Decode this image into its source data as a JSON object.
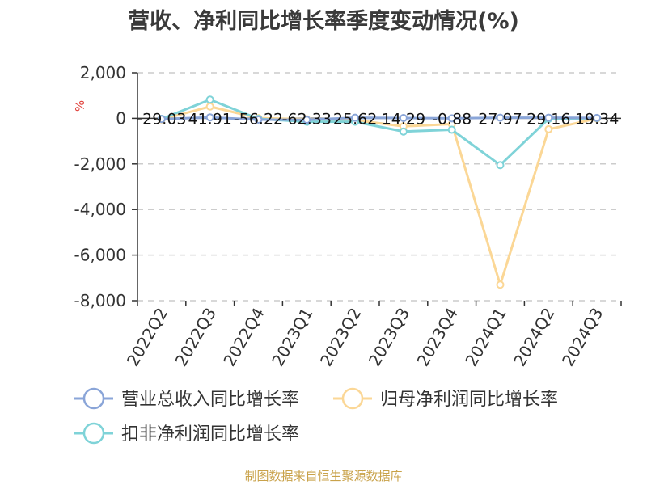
{
  "chart_data": {
    "type": "line",
    "title": "营收、净利同比增长率季度变动情况(%)",
    "ylabel": "%",
    "categories": [
      "2022Q2",
      "2022Q3",
      "2022Q4",
      "2023Q1",
      "2023Q2",
      "2023Q3",
      "2023Q4",
      "2024Q1",
      "2024Q2",
      "2024Q3"
    ],
    "yticks": [
      2000,
      0,
      -2000,
      -4000,
      -6000,
      -8000
    ],
    "ytick_labels": [
      "2,000",
      "0",
      "-2,000",
      "-4,000",
      "-6,000",
      "-8,000"
    ],
    "ylim": [
      -8000,
      2000
    ],
    "grid": true,
    "series": [
      {
        "name": "营业总收入同比增长率",
        "color": "#8aa5d8",
        "values": [
          -29.03,
          41.91,
          -56.22,
          -62.33,
          25.62,
          14.29,
          -0.88,
          27.97,
          29.16,
          19.34
        ]
      },
      {
        "name": "归母净利润同比增长率",
        "color": "#fbd796",
        "values": [
          -50,
          520,
          10,
          -40,
          -80,
          -350,
          -250,
          -7300,
          -480,
          -10
        ]
      },
      {
        "name": "扣非净利润同比增长率",
        "color": "#7fd3d8",
        "values": [
          -20,
          820,
          -20,
          -150,
          -150,
          -580,
          -500,
          -2050,
          -20,
          10
        ]
      }
    ],
    "data_labels": [
      "-29.03",
      "41.91",
      "-56.22",
      "-62.33",
      "25.62",
      "14.29",
      "-0.88",
      "27.97",
      "29.16",
      "19.34"
    ],
    "legend_position": "bottom"
  },
  "footer": {
    "source": "制图数据来自恒生聚源数据库"
  }
}
